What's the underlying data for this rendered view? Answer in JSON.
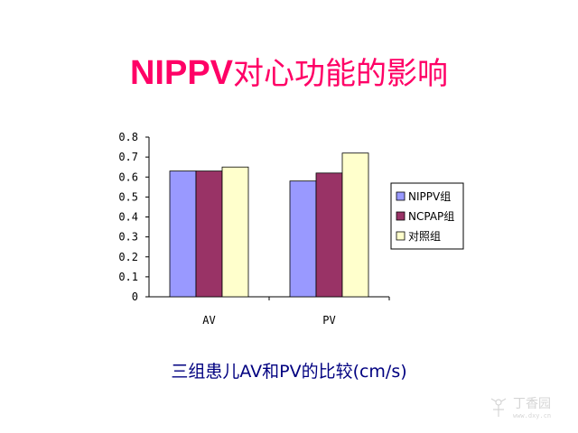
{
  "title": {
    "latin": "NIPPV",
    "cjk": "对心功能的影响"
  },
  "caption": "三组患儿AV和PV的比较(cm/s)",
  "colors": {
    "title": "#ff0066",
    "caption": "#000080",
    "series": [
      "#9999ff",
      "#993366",
      "#ffffcc"
    ]
  },
  "chart_data": {
    "type": "bar",
    "categories": [
      "AV",
      "PV"
    ],
    "series": [
      {
        "name": "NIPPV组",
        "values": [
          0.63,
          0.58
        ]
      },
      {
        "name": "NCPAP组",
        "values": [
          0.63,
          0.62
        ]
      },
      {
        "name": "对照组",
        "values": [
          0.65,
          0.72
        ]
      }
    ],
    "ylim": [
      0,
      0.8
    ],
    "yticks": [
      "0",
      "0.1",
      "0.2",
      "0.3",
      "0.4",
      "0.5",
      "0.6",
      "0.7",
      "0.8"
    ],
    "ytick_values": [
      0,
      0.1,
      0.2,
      0.3,
      0.4,
      0.5,
      0.6,
      0.7,
      0.8
    ],
    "grid": false,
    "legend_position": "right"
  }
}
